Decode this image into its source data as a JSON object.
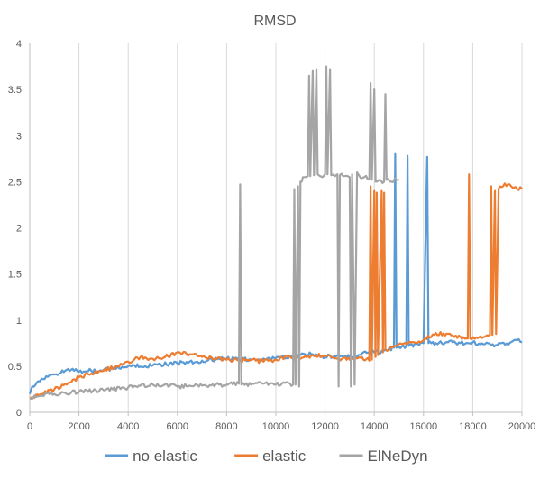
{
  "chart_data": {
    "type": "line",
    "title": "RMSD",
    "xlabel": "",
    "ylabel": "",
    "xlim": [
      0,
      20000
    ],
    "ylim": [
      0,
      4
    ],
    "x_ticks": [
      0,
      2000,
      4000,
      6000,
      8000,
      10000,
      12000,
      14000,
      16000,
      18000,
      20000
    ],
    "x_tick_labels": [
      "0",
      "2000",
      "4000",
      "6000",
      "8000",
      "10000",
      "12000",
      "14000",
      "16000",
      "18000",
      "20000"
    ],
    "y_ticks": [
      0,
      0.5,
      1,
      1.5,
      2,
      2.5,
      3,
      3.5,
      4
    ],
    "y_tick_labels": [
      "0",
      "0.5",
      "1",
      "1.5",
      "2",
      "2.5",
      "3",
      "3.5",
      "4"
    ],
    "grid": "vertical",
    "legend_position": "bottom",
    "series": [
      {
        "name": "no elastic",
        "color": "#5B9BD5",
        "points": [
          [
            0,
            0.2
          ],
          [
            100,
            0.28
          ],
          [
            300,
            0.33
          ],
          [
            600,
            0.36
          ],
          [
            800,
            0.4
          ],
          [
            1000,
            0.41
          ],
          [
            1200,
            0.42
          ],
          [
            1500,
            0.46
          ],
          [
            1800,
            0.45
          ],
          [
            2000,
            0.44
          ],
          [
            2500,
            0.45
          ],
          [
            3000,
            0.46
          ],
          [
            3500,
            0.47
          ],
          [
            4000,
            0.5
          ],
          [
            5000,
            0.51
          ],
          [
            6000,
            0.53
          ],
          [
            7000,
            0.56
          ],
          [
            8000,
            0.58
          ],
          [
            9000,
            0.57
          ],
          [
            10000,
            0.59
          ],
          [
            11000,
            0.62
          ],
          [
            11500,
            0.63
          ],
          [
            12000,
            0.6
          ],
          [
            12500,
            0.62
          ],
          [
            13000,
            0.6
          ],
          [
            13500,
            0.64
          ],
          [
            14000,
            0.65
          ],
          [
            14500,
            0.67
          ],
          [
            14800,
            0.7
          ],
          [
            14850,
            2.8
          ],
          [
            14900,
            0.7
          ],
          [
            15000,
            0.71
          ],
          [
            15300,
            0.72
          ],
          [
            15350,
            2.78
          ],
          [
            15400,
            0.72
          ],
          [
            15700,
            0.74
          ],
          [
            16000,
            0.75
          ],
          [
            16150,
            2.77
          ],
          [
            16200,
            0.75
          ],
          [
            16500,
            0.75
          ],
          [
            17000,
            0.76
          ],
          [
            17500,
            0.75
          ],
          [
            18000,
            0.76
          ],
          [
            18500,
            0.74
          ],
          [
            19000,
            0.73
          ],
          [
            19500,
            0.75
          ],
          [
            19800,
            0.78
          ],
          [
            20000,
            0.76
          ]
        ]
      },
      {
        "name": "elastic",
        "color": "#ED7D31",
        "points": [
          [
            0,
            0.15
          ],
          [
            500,
            0.2
          ],
          [
            1000,
            0.25
          ],
          [
            1500,
            0.3
          ],
          [
            2000,
            0.38
          ],
          [
            2500,
            0.42
          ],
          [
            3000,
            0.45
          ],
          [
            3500,
            0.5
          ],
          [
            4000,
            0.55
          ],
          [
            4500,
            0.6
          ],
          [
            5000,
            0.58
          ],
          [
            5500,
            0.6
          ],
          [
            6000,
            0.65
          ],
          [
            6500,
            0.63
          ],
          [
            7000,
            0.6
          ],
          [
            7500,
            0.58
          ],
          [
            8000,
            0.57
          ],
          [
            8500,
            0.56
          ],
          [
            9000,
            0.57
          ],
          [
            9500,
            0.55
          ],
          [
            10000,
            0.57
          ],
          [
            10500,
            0.6
          ],
          [
            11000,
            0.58
          ],
          [
            11500,
            0.62
          ],
          [
            12000,
            0.61
          ],
          [
            12500,
            0.58
          ],
          [
            13000,
            0.57
          ],
          [
            13500,
            0.6
          ],
          [
            13800,
            0.56
          ],
          [
            13850,
            2.45
          ],
          [
            13900,
            0.57
          ],
          [
            14000,
            2.4
          ],
          [
            14050,
            0.6
          ],
          [
            14100,
            2.38
          ],
          [
            14150,
            0.62
          ],
          [
            14300,
            2.4
          ],
          [
            14350,
            0.65
          ],
          [
            14400,
            2.38
          ],
          [
            14450,
            0.68
          ],
          [
            14800,
            0.72
          ],
          [
            15500,
            0.76
          ],
          [
            16000,
            0.78
          ],
          [
            16500,
            0.86
          ],
          [
            17000,
            0.85
          ],
          [
            17500,
            0.82
          ],
          [
            17800,
            0.8
          ],
          [
            17850,
            2.58
          ],
          [
            17900,
            0.8
          ],
          [
            18500,
            0.82
          ],
          [
            18700,
            0.84
          ],
          [
            18750,
            2.45
          ],
          [
            18800,
            0.84
          ],
          [
            18900,
            2.4
          ],
          [
            18950,
            0.85
          ],
          [
            19050,
            2.42
          ],
          [
            19100,
            2.45
          ],
          [
            19500,
            2.47
          ],
          [
            19800,
            2.42
          ],
          [
            20000,
            2.42
          ]
        ]
      },
      {
        "name": "ElNeDyn",
        "color": "#A5A5A5",
        "points": [
          [
            0,
            0.15
          ],
          [
            500,
            0.18
          ],
          [
            1000,
            0.2
          ],
          [
            2000,
            0.22
          ],
          [
            3000,
            0.24
          ],
          [
            4000,
            0.27
          ],
          [
            5000,
            0.3
          ],
          [
            6000,
            0.28
          ],
          [
            7000,
            0.29
          ],
          [
            8000,
            0.3
          ],
          [
            8500,
            0.31
          ],
          [
            8550,
            2.47
          ],
          [
            8600,
            0.3
          ],
          [
            9000,
            0.3
          ],
          [
            9500,
            0.31
          ],
          [
            10000,
            0.3
          ],
          [
            10500,
            0.32
          ],
          [
            10700,
            0.3
          ],
          [
            10750,
            2.42
          ],
          [
            10800,
            0.3
          ],
          [
            10900,
            2.45
          ],
          [
            10950,
            0.28
          ],
          [
            11000,
            2.5
          ],
          [
            11050,
            2.5
          ],
          [
            11100,
            2.55
          ],
          [
            11200,
            2.55
          ],
          [
            11300,
            2.56
          ],
          [
            11350,
            3.65
          ],
          [
            11400,
            2.56
          ],
          [
            11500,
            3.7
          ],
          [
            11550,
            2.57
          ],
          [
            11650,
            3.72
          ],
          [
            11700,
            2.58
          ],
          [
            11800,
            2.56
          ],
          [
            11900,
            2.55
          ],
          [
            12000,
            2.58
          ],
          [
            12050,
            3.75
          ],
          [
            12100,
            2.58
          ],
          [
            12200,
            3.72
          ],
          [
            12250,
            2.57
          ],
          [
            12400,
            2.56
          ],
          [
            12500,
            2.58
          ],
          [
            12550,
            0.28
          ],
          [
            12600,
            2.57
          ],
          [
            12800,
            2.56
          ],
          [
            13000,
            2.55
          ],
          [
            13050,
            0.28
          ],
          [
            13100,
            2.58
          ],
          [
            13200,
            0.3
          ],
          [
            13300,
            2.6
          ],
          [
            13400,
            2.56
          ],
          [
            13600,
            2.55
          ],
          [
            13800,
            2.53
          ],
          [
            13850,
            3.57
          ],
          [
            13900,
            2.52
          ],
          [
            14000,
            3.5
          ],
          [
            14050,
            2.5
          ],
          [
            14200,
            2.52
          ],
          [
            14400,
            2.5
          ],
          [
            14450,
            3.45
          ],
          [
            14500,
            2.52
          ],
          [
            14700,
            2.5
          ],
          [
            14900,
            2.52
          ],
          [
            15000,
            2.52
          ]
        ]
      }
    ]
  }
}
